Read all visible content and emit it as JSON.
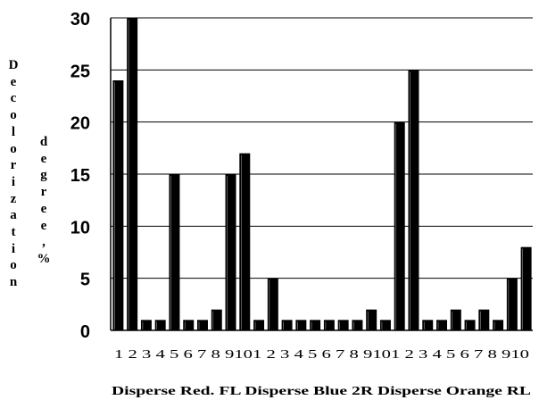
{
  "chart_data": {
    "type": "bar",
    "title": "",
    "ylabel_line1": "Decolorization",
    "ylabel_line2": "degree,%",
    "ylim": [
      0,
      30
    ],
    "yticks": [
      "0",
      "5",
      "10",
      "15",
      "20",
      "25",
      "30"
    ],
    "grid": "horizontal",
    "groups": [
      "Disperse Red. FL",
      "Disperse Blue 2R",
      "Disperse Orange RL"
    ],
    "group_caption": "Disperse Red. FL Disperse Blue 2R  Disperse Orange RL",
    "categories": [
      "1",
      "2",
      "3",
      "4",
      "5",
      "6",
      "7",
      "8",
      "9",
      "10",
      "1",
      "2",
      "3",
      "4",
      "5",
      "6",
      "7",
      "8",
      "9",
      "10",
      "1",
      "2",
      "3",
      "4",
      "5",
      "6",
      "7",
      "8",
      "9",
      "10"
    ],
    "x_tick_text": "1 2 3 4 5 6 7 8 9101 2 3 4 5 6 7 8 9101 2 3 4 5 6 7 8 910",
    "values": [
      24,
      30,
      1,
      1,
      15,
      1,
      1,
      2,
      15,
      17,
      1,
      5,
      1,
      1,
      1,
      1,
      1,
      1,
      2,
      1,
      20,
      25,
      1,
      1,
      2,
      1,
      2,
      1,
      5,
      8
    ],
    "bar_color": "#000000"
  }
}
